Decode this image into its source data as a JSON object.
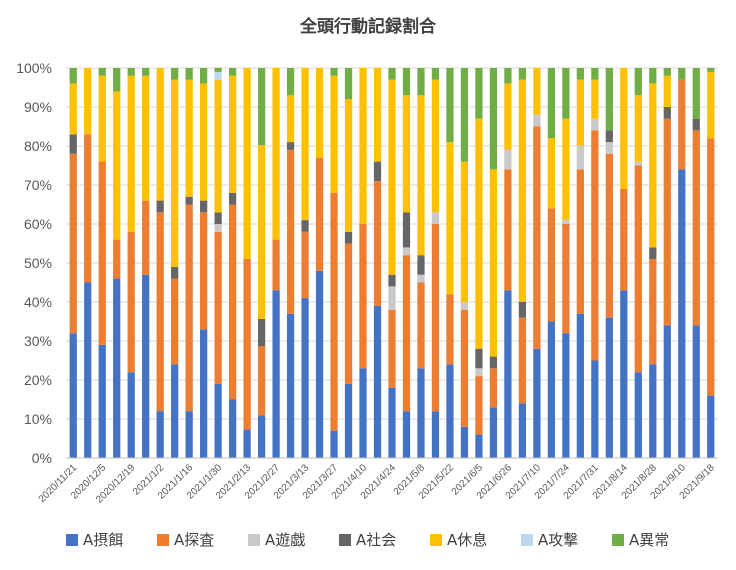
{
  "chart_data": {
    "type": "bar",
    "stacked": "percent",
    "title": "全頭行動記録割合",
    "ylim": [
      0,
      100
    ],
    "y_ticks": [
      "0%",
      "10%",
      "20%",
      "30%",
      "40%",
      "50%",
      "60%",
      "70%",
      "80%",
      "90%",
      "100%"
    ],
    "grid": true,
    "legend_position": "bottom",
    "x_tick_labels": [
      "2020/11/21",
      "2020/12/5",
      "2020/12/19",
      "2021/1/2",
      "2021/1/16",
      "2021/1/30",
      "2021/2/13",
      "2021/2/27",
      "2021/3/13",
      "2021/3/27",
      "2021/4/10",
      "2021/4/24",
      "2021/5/8",
      "2021/5/22",
      "2021/6/5",
      "2021/6/26",
      "2021/7/10",
      "2021/7/24",
      "2021/7/31",
      "2021/8/14",
      "2021/8/28",
      "2021/9/10",
      "2021/9/18"
    ],
    "x_tick_positions": [
      0,
      2,
      4,
      6,
      8,
      10,
      12,
      14,
      16,
      18,
      20,
      22,
      24,
      26,
      28,
      30,
      32,
      34,
      36,
      38,
      40,
      42,
      44
    ],
    "bar_count": 45,
    "series": [
      {
        "name": "A摂餌",
        "color": "#4472C4",
        "values": [
          32,
          45,
          29,
          46,
          22,
          47,
          12,
          24,
          12,
          33,
          19,
          15,
          7,
          11,
          43,
          37,
          41,
          48,
          7,
          19,
          23,
          39,
          18,
          12,
          23,
          12,
          24,
          8,
          6,
          13,
          43,
          14,
          28,
          35,
          32,
          37,
          25,
          36,
          43,
          22,
          24,
          34,
          74,
          34,
          16
        ]
      },
      {
        "name": "A探査",
        "color": "#ED7D31",
        "values": [
          46,
          38,
          47,
          10,
          36,
          19,
          51,
          22,
          53,
          30,
          39,
          50,
          42,
          18,
          13,
          42,
          17,
          29,
          61,
          36,
          37,
          32,
          20,
          40,
          22,
          48,
          18,
          30,
          15,
          10,
          31,
          22,
          57,
          29,
          28,
          37,
          59,
          42,
          26,
          53,
          27,
          53,
          23,
          50,
          66
        ]
      },
      {
        "name": "A遊戯",
        "color": "#C9C9C9",
        "values": [
          0,
          0,
          0,
          0,
          0,
          0,
          0,
          0,
          0,
          0,
          2,
          0,
          0,
          0,
          0,
          0,
          0,
          0,
          0,
          0,
          0,
          0,
          6,
          2,
          2,
          3,
          0,
          2,
          2,
          0,
          5,
          0,
          3,
          0,
          1,
          6,
          3,
          3,
          0,
          1,
          0,
          0,
          0,
          0,
          0
        ]
      },
      {
        "name": "A社会",
        "color": "#666666",
        "values": [
          5,
          0,
          0,
          0,
          0,
          0,
          3,
          3,
          2,
          3,
          3,
          3,
          0,
          7,
          0,
          2,
          3,
          0,
          0,
          3,
          0,
          5,
          3,
          9,
          5,
          0,
          0,
          0,
          5,
          3,
          0,
          4,
          0,
          0,
          0,
          0,
          0,
          3,
          0,
          0,
          3,
          3,
          0,
          3,
          0
        ]
      },
      {
        "name": "A休息",
        "color": "#FFC000",
        "values": [
          13,
          17,
          22,
          38,
          40,
          32,
          34,
          48,
          30,
          30,
          34,
          30,
          47,
          45,
          44,
          12,
          39,
          23,
          30,
          34,
          40,
          24,
          50,
          30,
          41,
          34,
          39,
          36,
          59,
          48,
          17,
          57,
          12,
          18,
          26,
          17,
          10,
          0,
          31,
          17,
          42,
          8,
          0,
          0,
          17
        ]
      },
      {
        "name": "A攻撃",
        "color": "#BDD7EE",
        "values": [
          0,
          0,
          0,
          0,
          0,
          0,
          0,
          0,
          0,
          0,
          2,
          0,
          0,
          0,
          0,
          0,
          0,
          0,
          0,
          0,
          0,
          0,
          0,
          0,
          0,
          0,
          0,
          0,
          0,
          0,
          0,
          0,
          0,
          0,
          0,
          0,
          0,
          0,
          0,
          0,
          0,
          0,
          0,
          0,
          0
        ]
      },
      {
        "name": "A異常",
        "color": "#70AD47",
        "values": [
          4,
          0,
          2,
          6,
          2,
          2,
          0,
          3,
          3,
          4,
          1,
          2,
          0,
          20,
          0,
          7,
          0,
          0,
          2,
          8,
          0,
          0,
          3,
          7,
          7,
          3,
          19,
          24,
          13,
          26,
          4,
          3,
          0,
          18,
          13,
          3,
          3,
          16,
          0,
          7,
          4,
          2,
          3,
          13,
          1
        ]
      }
    ]
  }
}
